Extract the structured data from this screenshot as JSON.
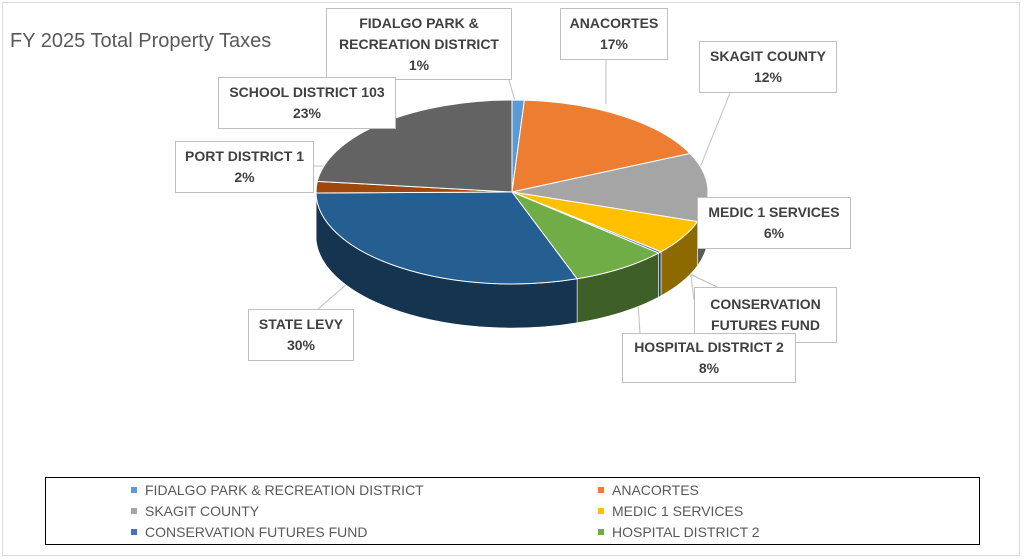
{
  "chart_data": {
    "type": "pie",
    "title": "FY 2025 Total Property Taxes",
    "slices": [
      {
        "label": "FIDALGO PARK & RECREATION DISTRICT",
        "value": 1,
        "value_label": "1%",
        "color": "#5b9bd5"
      },
      {
        "label": "ANACORTES",
        "value": 17,
        "value_label": "17%",
        "color": "#ed7d31"
      },
      {
        "label": "SKAGIT COUNTY",
        "value": 12,
        "value_label": "12%",
        "color": "#a5a5a5"
      },
      {
        "label": "MEDIC 1 SERVICES",
        "value": 6,
        "value_label": "6%",
        "color": "#ffc000"
      },
      {
        "label": "CONSERVATION FUTURES FUND",
        "value": 0.3,
        "value_label": "",
        "color": "#4472c4"
      },
      {
        "label": "HOSPITAL DISTRICT 2",
        "value": 8,
        "value_label": "8%",
        "color": "#70ad47"
      },
      {
        "label": "STATE LEVY",
        "value": 30,
        "value_label": "30%",
        "color": "#255e91"
      },
      {
        "label": "PORT DISTRICT 1",
        "value": 2,
        "value_label": "2%",
        "color": "#9e480e"
      },
      {
        "label": "SCHOOL DISTRICT 103",
        "value": 23,
        "value_label": "23%",
        "color": "#636363"
      }
    ],
    "legend": [
      {
        "label": "FIDALGO PARK & RECREATION DISTRICT",
        "color": "#5b9bd5"
      },
      {
        "label": "ANACORTES",
        "color": "#ed7d31"
      },
      {
        "label": "SKAGIT COUNTY",
        "color": "#a5a5a5"
      },
      {
        "label": "MEDIC 1 SERVICES",
        "color": "#ffc000"
      },
      {
        "label": "CONSERVATION FUTURES FUND",
        "color": "#4472c4"
      },
      {
        "label": "HOSPITAL DISTRICT 2",
        "color": "#70ad47"
      }
    ],
    "legend_placement": "bottom"
  },
  "callouts": {
    "fidalgo": {
      "line1": "FIDALGO PARK &",
      "line2": "RECREATION DISTRICT",
      "pct": "1%"
    },
    "anacortes": {
      "line1": "ANACORTES",
      "pct": "17%"
    },
    "skagit": {
      "line1": "SKAGIT COUNTY",
      "pct": "12%"
    },
    "medic": {
      "line1": "MEDIC 1 SERVICES",
      "pct": "6%"
    },
    "conservation": {
      "line1": "CONSERVATION",
      "line2": "FUTURES FUND"
    },
    "hospital": {
      "line1": "HOSPITAL DISTRICT 2",
      "pct": "8%"
    },
    "state": {
      "line1": "STATE LEVY",
      "pct": "30%"
    },
    "port": {
      "line1": "PORT DISTRICT 1",
      "pct": "2%"
    },
    "school": {
      "line1": "SCHOOL DISTRICT 103",
      "pct": "23%"
    }
  }
}
